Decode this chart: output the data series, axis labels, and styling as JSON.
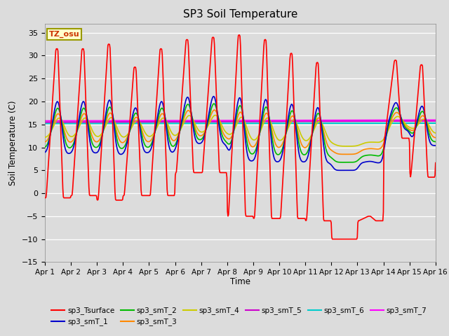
{
  "title": "SP3 Soil Temperature",
  "xlabel": "Time",
  "ylabel": "Soil Temperature (C)",
  "ylim": [
    -15,
    37
  ],
  "yticks": [
    -15,
    -10,
    -5,
    0,
    5,
    10,
    15,
    20,
    25,
    30,
    35
  ],
  "bg_color": "#dcdcdc",
  "plot_bg": "#dcdcdc",
  "tz_label": "TZ_osu",
  "legend_entries": [
    "sp3_Tsurface",
    "sp3_smT_1",
    "sp3_smT_2",
    "sp3_smT_3",
    "sp3_smT_4",
    "sp3_smT_5",
    "sp3_smT_6",
    "sp3_smT_7"
  ],
  "colors": {
    "sp3_Tsurface": "#ff0000",
    "sp3_smT_1": "#0000cc",
    "sp3_smT_2": "#00bb00",
    "sp3_smT_3": "#ff8800",
    "sp3_smT_4": "#cccc00",
    "sp3_smT_5": "#cc00cc",
    "sp3_smT_6": "#00cccc",
    "sp3_smT_7": "#ff00ff"
  },
  "xticklabels": [
    "Apr 1",
    "Apr 2",
    "Apr 3",
    "Apr 4",
    "Apr 5",
    "Apr 6",
    "Apr 7",
    "Apr 8",
    "Apr 9",
    "Apr 10",
    "Apr 11",
    "Apr 12",
    "Apr 13",
    "Apr 14",
    "Apr 15",
    "Apr 16"
  ],
  "days": 15,
  "n_per_day": 48,
  "surface_peaks": [
    31.5,
    31.5,
    32.5,
    27.5,
    31.5,
    33.5,
    34,
    34.5,
    33.5,
    30.5,
    28.5,
    -10,
    -5,
    29,
    28,
    8
  ],
  "surface_mins": [
    -1.0,
    -0.5,
    -1.5,
    -0.5,
    -0.5,
    4.5,
    4.5,
    -5,
    -5.5,
    -5.5,
    -6,
    -10,
    -6,
    12,
    3.5,
    7
  ],
  "sub_base": 15.0,
  "sub_params": [
    {
      "amp": 0.45,
      "lag": 2,
      "trend": 0.0,
      "key": "sp3_smT_1"
    },
    {
      "amp": 0.38,
      "lag": 3,
      "trend": 0.0,
      "key": "sp3_smT_2"
    },
    {
      "amp": 0.3,
      "lag": 4,
      "trend": 0.0,
      "key": "sp3_smT_3"
    },
    {
      "amp": 0.22,
      "lag": 5,
      "trend": 0.0,
      "key": "sp3_smT_4"
    },
    {
      "amp": 0.0,
      "lag": 0,
      "trend": 0.018,
      "key": "sp3_smT_5"
    },
    {
      "amp": 0.0,
      "lag": 0,
      "trend": 0.005,
      "key": "sp3_smT_6"
    },
    {
      "amp": 0.0,
      "lag": 0,
      "trend": 0.012,
      "key": "sp3_smT_7"
    }
  ]
}
